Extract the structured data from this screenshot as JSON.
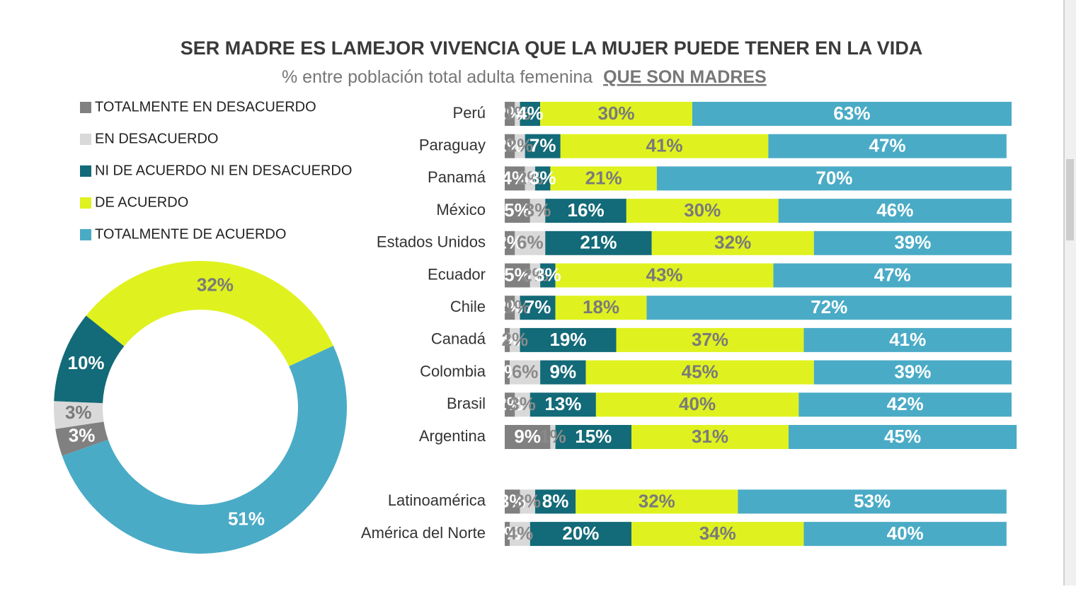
{
  "chart_data": [
    {
      "type": "stacked-barh",
      "title": "SER MADRE ES LAMEJOR VIVENCIA QUE LA MUJER PUEDE TENER EN LA VIDA",
      "subtitle": "% entre población total adulta femenina",
      "subtitle_emphasis": "QUE SON MADRES",
      "categories": [
        "Perú",
        "Paraguay",
        "Panamá",
        "México",
        "Estados Unidos",
        "Ecuador",
        "Chile",
        "Canadá",
        "Colombia",
        "Brasil",
        "Argentina",
        null,
        "Latinoamérica",
        "América del Norte"
      ],
      "xlim": [
        0,
        100
      ],
      "series": [
        {
          "name": "TOTALMENTE EN DESACUERDO",
          "color": "#808080",
          "values": [
            2,
            2,
            4,
            5,
            2,
            5,
            2,
            1,
            1,
            2,
            9,
            null,
            3,
            1
          ],
          "value_labels": [
            "2%",
            "2%",
            "4%",
            "5%",
            "2%",
            "5%",
            "2%",
            "1%",
            "1%",
            "2%",
            "9%",
            null,
            "3%",
            "1%"
          ]
        },
        {
          "name": "EN DESACUERDO",
          "color": "#d9d9d9",
          "values": [
            1,
            2,
            2,
            3,
            6,
            2,
            1,
            2,
            6,
            3,
            1,
            null,
            3,
            4
          ],
          "value_labels": [
            "1%",
            "2%",
            "2%",
            "3%",
            "6%",
            "2%",
            "1%",
            "2%",
            "6%",
            "3%",
            "1%",
            null,
            "3%",
            "4%"
          ]
        },
        {
          "name": "NI DE ACUERDO NI EN DESACUERDO",
          "color": "#136a78",
          "values": [
            4,
            7,
            3,
            16,
            21,
            3,
            7,
            19,
            9,
            13,
            15,
            null,
            8,
            20
          ],
          "value_labels": [
            "4%",
            "7%",
            "3%",
            "16%",
            "21%",
            "3%",
            "7%",
            "19%",
            "9%",
            "13%",
            "15%",
            null,
            "8%",
            "20%"
          ]
        },
        {
          "name": "DE ACUERDO",
          "color": "#dff21f",
          "values": [
            30,
            41,
            21,
            30,
            32,
            43,
            18,
            37,
            45,
            40,
            31,
            null,
            32,
            34
          ],
          "value_labels": [
            "30%",
            "41%",
            "21%",
            "30%",
            "32%",
            "43%",
            "18%",
            "37%",
            "45%",
            "40%",
            "31%",
            null,
            "32%",
            "34%"
          ]
        },
        {
          "name": "TOTALMENTE DE ACUERDO",
          "color": "#4aabc6",
          "values": [
            63,
            47,
            70,
            46,
            39,
            47,
            72,
            41,
            39,
            42,
            45,
            null,
            53,
            40
          ],
          "value_labels": [
            "63%",
            "47%",
            "70%",
            "46%",
            "39%",
            "47%",
            "72%",
            "41%",
            "39%",
            "42%",
            "45%",
            null,
            "53%",
            "40%"
          ]
        }
      ]
    },
    {
      "type": "donut",
      "values": [
        3,
        3,
        10,
        32,
        51
      ],
      "value_labels": [
        "3%",
        "3%",
        "10%",
        "32%",
        "51%"
      ],
      "colors": [
        "#808080",
        "#d9d9d9",
        "#136a78",
        "#dff21f",
        "#4aabc6"
      ]
    }
  ]
}
